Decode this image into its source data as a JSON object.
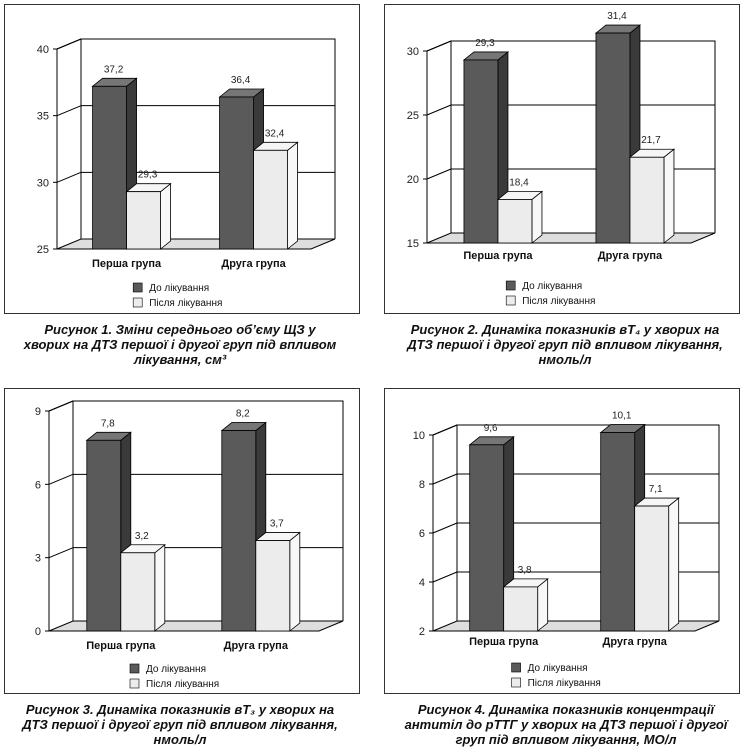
{
  "colors": {
    "before": "#5a5a5a",
    "after": "#ececec",
    "floor": "#dedede",
    "grid": "#000000"
  },
  "legend": {
    "before_label": "До лікування",
    "after_label": "Після лікування"
  },
  "charts": [
    {
      "caption": "Рисунок 1. Зміни середнього об’єму ЩЗ у хворих на ДТЗ першої і другої груп під впливом лікування, см³",
      "chart_data": {
        "type": "bar",
        "categories": [
          "Перша група",
          "Друга група"
        ],
        "series": [
          {
            "name": "До лікування",
            "values": [
              37.2,
              36.4
            ]
          },
          {
            "name": "Після лікування",
            "values": [
              29.3,
              32.4
            ]
          }
        ],
        "ylim": [
          25,
          40
        ],
        "yticks": [
          25,
          30,
          35,
          40
        ],
        "value_labels": [
          [
            "37,2",
            "36,4"
          ],
          [
            "29,3",
            "32,4"
          ]
        ],
        "tick_labels": [
          "25",
          "30",
          "35",
          "40"
        ],
        "grid": true,
        "legend_position": "bottom"
      }
    },
    {
      "caption": "Рисунок 2. Динаміка показників вТ₄ у хворих на ДТЗ першої і другої груп під впливом лікування, нмоль/л",
      "chart_data": {
        "type": "bar",
        "categories": [
          "Перша група",
          "Друга група"
        ],
        "series": [
          {
            "name": "До лікування",
            "values": [
              29.3,
              31.4
            ]
          },
          {
            "name": "Після лікування",
            "values": [
              18.4,
              21.7
            ]
          }
        ],
        "ylim": [
          15,
          30
        ],
        "yticks": [
          15,
          20,
          25,
          30
        ],
        "value_labels": [
          [
            "29,3",
            "31,4"
          ],
          [
            "18,4",
            "21,7"
          ]
        ],
        "tick_labels": [
          "15",
          "20",
          "25",
          "30"
        ],
        "grid": true,
        "legend_position": "bottom"
      }
    },
    {
      "caption": "Рисунок 3. Динаміка показників вТ₃ у хворих на ДТЗ першої і другої груп під впливом лікування, нмоль/л",
      "chart_data": {
        "type": "bar",
        "categories": [
          "Перша група",
          "Друга група"
        ],
        "series": [
          {
            "name": "До лікування",
            "values": [
              7.8,
              8.2
            ]
          },
          {
            "name": "Після лікування",
            "values": [
              3.2,
              3.7
            ]
          }
        ],
        "ylim": [
          0,
          9
        ],
        "yticks": [
          0,
          3,
          6,
          9
        ],
        "value_labels": [
          [
            "7,8",
            "8,2"
          ],
          [
            "3,2",
            "3,7"
          ]
        ],
        "tick_labels": [
          "0",
          "3",
          "6",
          "9"
        ],
        "grid": true,
        "legend_position": "bottom"
      }
    },
    {
      "caption": "Рисунок 4. Динаміка показників концентрації антитіл до рТТГ у хворих на ДТЗ першої і другої груп під впливом лікування, МО/л",
      "chart_data": {
        "type": "bar",
        "categories": [
          "Перша група",
          "Друга група"
        ],
        "series": [
          {
            "name": "До лікування",
            "values": [
              9.6,
              10.1
            ]
          },
          {
            "name": "Після лікування",
            "values": [
              3.8,
              7.1
            ]
          }
        ],
        "ylim": [
          2,
          10
        ],
        "yticks": [
          2,
          4,
          6,
          8,
          10
        ],
        "value_labels": [
          [
            "9,6",
            "10,1"
          ],
          [
            "3,8",
            "7,1"
          ]
        ],
        "tick_labels": [
          "2",
          "4",
          "6",
          "8",
          "10"
        ],
        "grid": true,
        "legend_position": "bottom"
      }
    }
  ]
}
